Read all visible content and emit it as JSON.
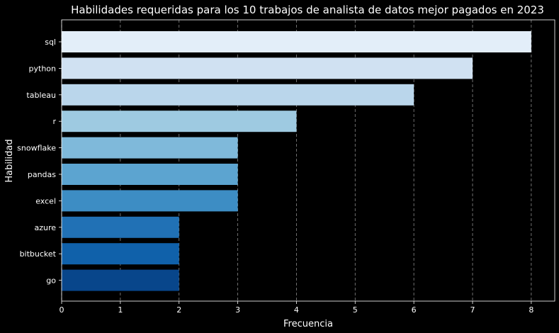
{
  "chart_data": {
    "type": "bar",
    "orientation": "horizontal",
    "title": "Habilidades requeridas para los 10 trabajos de analista de datos mejor pagados en 2023",
    "xlabel": "Frecuencia",
    "ylabel": "Habilidad",
    "categories": [
      "sql",
      "python",
      "tableau",
      "r",
      "snowflake",
      "pandas",
      "excel",
      "azure",
      "bitbucket",
      "go"
    ],
    "values": [
      8,
      7,
      6,
      4,
      3,
      3,
      3,
      2,
      2,
      2
    ],
    "xlim": [
      0,
      8.4
    ],
    "xticks": [
      0,
      1,
      2,
      3,
      4,
      5,
      6,
      7,
      8
    ],
    "grid": "x, dashed",
    "legend": "none",
    "colors": [
      "#e3eef9",
      "#d0e1f2",
      "#bad6eb",
      "#9ecae1",
      "#7fb9da",
      "#5ca4d0",
      "#3d8dc4",
      "#2171b5",
      "#1061aa",
      "#08468b"
    ],
    "background": "#000000",
    "text_color": "#ffffff"
  }
}
